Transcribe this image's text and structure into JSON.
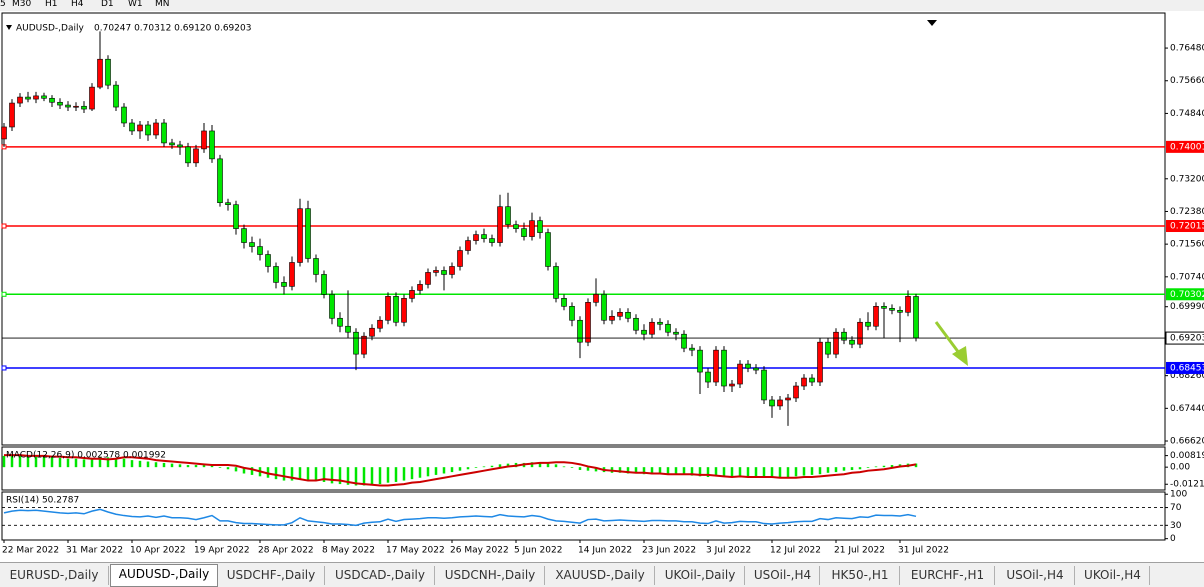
{
  "toolbar": {
    "timeframes": [
      "5",
      "M30",
      "H1",
      "H4",
      "D1",
      "W1",
      "MN"
    ]
  },
  "tabs": {
    "items": [
      "EURUSD-,Daily",
      "AUDUSD-,Daily",
      "USDCHF-,Daily",
      "USDCAD-,Daily",
      "USDCNH-,Daily",
      "XAUUSD-,Daily",
      "UKOil-,Daily",
      "USOil-,H4",
      "HK50-,H1",
      "EURCHF-,H1",
      "USOil-,H4",
      "UKOil-,H4"
    ],
    "active": 1
  },
  "chart_data": [
    {
      "type": "candlestick",
      "title": "AUDUSD-,Daily",
      "subtitle": "0.70247 0.70312 0.69120 0.69203",
      "up_color": "#ff0000",
      "down_color": "#00e600",
      "categories": [
        "22 Mar 2022",
        null,
        null,
        null,
        null,
        null,
        null,
        null,
        "31 Mar 2022",
        null,
        null,
        null,
        null,
        null,
        null,
        null,
        "10 Apr 2022",
        null,
        null,
        null,
        null,
        null,
        null,
        null,
        "19 Apr 2022",
        null,
        null,
        null,
        null,
        null,
        null,
        null,
        "28 Apr 2022",
        null,
        null,
        null,
        null,
        null,
        null,
        null,
        "8 May 2022",
        null,
        null,
        null,
        null,
        null,
        null,
        null,
        "17 May 2022",
        null,
        null,
        null,
        null,
        null,
        null,
        null,
        "26 May 2022",
        null,
        null,
        null,
        null,
        null,
        null,
        null,
        "5 Jun 2022",
        null,
        null,
        null,
        null,
        null,
        null,
        null,
        "14 Jun 2022",
        null,
        null,
        null,
        null,
        null,
        null,
        null,
        "23 Jun 2022",
        null,
        null,
        null,
        null,
        null,
        null,
        null,
        "3 Jul 2022",
        null,
        null,
        null,
        null,
        null,
        null,
        null,
        "12 Jul 2022",
        null,
        null,
        null,
        null,
        null,
        null,
        null,
        "21 Jul 2022",
        null,
        null,
        null,
        null,
        null,
        null,
        null,
        "31 Jul 2022",
        null,
        null
      ],
      "open": [
        0.742,
        0.745,
        0.751,
        0.7525,
        0.752,
        0.7528,
        0.7522,
        0.7512,
        0.7505,
        0.75,
        0.7502,
        0.7495,
        0.755,
        0.762,
        0.7555,
        0.75,
        0.746,
        0.744,
        0.7455,
        0.743,
        0.746,
        0.741,
        0.7405,
        0.74,
        0.736,
        0.7395,
        0.744,
        0.737,
        0.726,
        0.7255,
        0.7195,
        0.716,
        0.715,
        0.713,
        0.71,
        0.706,
        0.705,
        0.711,
        0.7245,
        0.712,
        0.708,
        0.703,
        0.697,
        0.695,
        0.6935,
        0.688,
        0.6925,
        0.6945,
        0.6965,
        0.7025,
        0.696,
        0.702,
        0.704,
        0.7055,
        0.7085,
        0.709,
        0.708,
        0.71,
        0.714,
        0.7165,
        0.718,
        0.717,
        0.716,
        0.725,
        0.7205,
        0.7195,
        0.7175,
        0.7215,
        0.7185,
        0.71,
        0.702,
        0.7,
        0.6965,
        0.691,
        0.701,
        0.703,
        0.6965,
        0.6975,
        0.6985,
        0.697,
        0.694,
        0.693,
        0.696,
        0.6955,
        0.6935,
        0.693,
        0.6895,
        0.689,
        0.6835,
        0.681,
        0.689,
        0.68,
        0.6805,
        0.6855,
        0.6845,
        0.684,
        0.6765,
        0.675,
        0.6765,
        0.677,
        0.68,
        0.682,
        0.681,
        0.691,
        0.688,
        0.6935,
        0.6915,
        0.6905,
        0.696,
        0.695,
        0.7,
        0.6995,
        0.699,
        0.6985,
        0.70247
      ],
      "high": [
        0.746,
        0.752,
        0.7535,
        0.7538,
        0.7538,
        0.7536,
        0.753,
        0.7522,
        0.7515,
        0.7512,
        0.7515,
        0.756,
        0.769,
        0.763,
        0.7565,
        0.751,
        0.747,
        0.7465,
        0.7465,
        0.747,
        0.747,
        0.742,
        0.7415,
        0.741,
        0.7405,
        0.746,
        0.7455,
        0.738,
        0.727,
        0.7265,
        0.7205,
        0.7175,
        0.717,
        0.714,
        0.711,
        0.7075,
        0.7125,
        0.727,
        0.7265,
        0.713,
        0.709,
        0.704,
        0.6985,
        0.704,
        0.6945,
        0.6935,
        0.6955,
        0.6975,
        0.7035,
        0.7035,
        0.703,
        0.705,
        0.7065,
        0.7095,
        0.71,
        0.71,
        0.711,
        0.715,
        0.7175,
        0.719,
        0.7195,
        0.718,
        0.728,
        0.7285,
        0.7215,
        0.721,
        0.7235,
        0.7225,
        0.7195,
        0.711,
        0.703,
        0.701,
        0.6975,
        0.702,
        0.707,
        0.704,
        0.699,
        0.6995,
        0.6995,
        0.698,
        0.6955,
        0.697,
        0.697,
        0.6965,
        0.6945,
        0.694,
        0.6905,
        0.69,
        0.6845,
        0.69,
        0.69,
        0.6815,
        0.6865,
        0.6865,
        0.6855,
        0.685,
        0.6775,
        0.6775,
        0.678,
        0.681,
        0.683,
        0.683,
        0.692,
        0.692,
        0.6945,
        0.6945,
        0.6925,
        0.697,
        0.6985,
        0.701,
        0.701,
        0.7005,
        0.7,
        0.704,
        0.70312
      ],
      "low": [
        0.74,
        0.744,
        0.75,
        0.7512,
        0.751,
        0.7515,
        0.75,
        0.7495,
        0.749,
        0.749,
        0.7485,
        0.749,
        0.7545,
        0.7545,
        0.749,
        0.745,
        0.743,
        0.742,
        0.7415,
        0.742,
        0.74,
        0.7395,
        0.738,
        0.735,
        0.735,
        0.7385,
        0.736,
        0.725,
        0.724,
        0.718,
        0.7145,
        0.7135,
        0.7115,
        0.7085,
        0.7045,
        0.703,
        0.704,
        0.71,
        0.711,
        0.706,
        0.702,
        0.6955,
        0.6935,
        0.692,
        0.684,
        0.687,
        0.6915,
        0.6935,
        0.6955,
        0.695,
        0.695,
        0.701,
        0.703,
        0.7045,
        0.7075,
        0.704,
        0.707,
        0.709,
        0.713,
        0.7155,
        0.716,
        0.715,
        0.715,
        0.7195,
        0.7185,
        0.7165,
        0.7165,
        0.717,
        0.709,
        0.701,
        0.699,
        0.695,
        0.687,
        0.69,
        0.7,
        0.6955,
        0.6955,
        0.6965,
        0.696,
        0.693,
        0.6915,
        0.692,
        0.694,
        0.6925,
        0.6915,
        0.6885,
        0.6875,
        0.678,
        0.6795,
        0.68,
        0.6785,
        0.6785,
        0.6795,
        0.6835,
        0.683,
        0.6755,
        0.672,
        0.674,
        0.67,
        0.676,
        0.679,
        0.68,
        0.68,
        0.687,
        0.687,
        0.6905,
        0.6895,
        0.6895,
        0.694,
        0.694,
        0.692,
        0.698,
        0.691,
        0.6975,
        0.6912
      ],
      "close": [
        0.745,
        0.751,
        0.7525,
        0.752,
        0.7528,
        0.7522,
        0.7512,
        0.7505,
        0.75,
        0.7502,
        0.7495,
        0.755,
        0.762,
        0.7555,
        0.75,
        0.746,
        0.744,
        0.7455,
        0.743,
        0.746,
        0.741,
        0.7405,
        0.74,
        0.736,
        0.7395,
        0.744,
        0.737,
        0.726,
        0.7255,
        0.7195,
        0.716,
        0.715,
        0.713,
        0.71,
        0.706,
        0.705,
        0.711,
        0.7245,
        0.712,
        0.708,
        0.703,
        0.697,
        0.695,
        0.6935,
        0.688,
        0.6925,
        0.6945,
        0.6965,
        0.7025,
        0.696,
        0.702,
        0.704,
        0.7055,
        0.7085,
        0.709,
        0.708,
        0.71,
        0.714,
        0.7165,
        0.718,
        0.717,
        0.716,
        0.725,
        0.7205,
        0.7195,
        0.7175,
        0.7215,
        0.7185,
        0.71,
        0.702,
        0.7,
        0.6965,
        0.691,
        0.701,
        0.703,
        0.6965,
        0.6975,
        0.6985,
        0.697,
        0.694,
        0.693,
        0.696,
        0.6955,
        0.6935,
        0.693,
        0.6895,
        0.689,
        0.6835,
        0.681,
        0.689,
        0.68,
        0.6805,
        0.6855,
        0.6845,
        0.684,
        0.6765,
        0.675,
        0.6765,
        0.677,
        0.68,
        0.682,
        0.681,
        0.691,
        0.688,
        0.6935,
        0.6915,
        0.6905,
        0.696,
        0.695,
        0.7,
        0.6995,
        0.699,
        0.6985,
        0.7025,
        0.69203
      ],
      "ylim": [
        0.6652,
        0.7736
      ],
      "yticks": [
        {
          "value": 0.7648,
          "label": "0.76480"
        },
        {
          "value": 0.7566,
          "label": "0.75660"
        },
        {
          "value": 0.7484,
          "label": "0.74840"
        },
        {
          "value": 0.732,
          "label": "0.73200"
        },
        {
          "value": 0.7238,
          "label": "0.72380"
        },
        {
          "value": 0.7156,
          "label": "0.71560"
        },
        {
          "value": 0.7074,
          "label": "0.70740"
        },
        {
          "value": 0.6999,
          "label": "0.69990"
        },
        {
          "value": 0.6826,
          "label": "0.68260"
        },
        {
          "value": 0.6744,
          "label": "0.67440"
        },
        {
          "value": 0.6662,
          "label": "0.66620"
        }
      ],
      "levels": [
        {
          "value": 0.74001,
          "color": "#ff0000"
        },
        {
          "value": 0.72015,
          "color": "#ff0000"
        },
        {
          "value": 0.70302,
          "color": "#00e600"
        },
        {
          "value": 0.68453,
          "color": "#0000ff"
        }
      ]
    },
    {
      "type": "macd",
      "title": "MACD(12,26,9) 0.002578 0.001992",
      "color": "#00e600",
      "signal_color": "#cc0000",
      "values": [
        0.008,
        0.008,
        0.008,
        0.0075,
        0.0075,
        0.007,
        0.007,
        0.0065,
        0.006,
        0.006,
        0.0055,
        0.006,
        0.007,
        0.007,
        0.0065,
        0.006,
        0.005,
        0.0045,
        0.004,
        0.0035,
        0.003,
        0.0025,
        0.002,
        0.0015,
        0.0015,
        0.0015,
        0.001,
        -0.0005,
        -0.0015,
        -0.003,
        -0.0045,
        -0.0055,
        -0.0065,
        -0.0075,
        -0.0085,
        -0.0095,
        -0.0095,
        -0.0085,
        -0.009,
        -0.0095,
        -0.0105,
        -0.0115,
        -0.012,
        -0.0125,
        -0.013,
        -0.013,
        -0.0125,
        -0.012,
        -0.011,
        -0.0105,
        -0.0095,
        -0.0085,
        -0.0075,
        -0.0065,
        -0.0055,
        -0.0045,
        -0.0035,
        -0.0025,
        -0.0015,
        -0.0005,
        0.0005,
        0.001,
        0.002,
        0.0025,
        0.003,
        0.003,
        0.0035,
        0.0035,
        0.003,
        0.002,
        0.0005,
        -0.0005,
        -0.002,
        -0.0025,
        -0.003,
        -0.0035,
        -0.004,
        -0.004,
        -0.0045,
        -0.0045,
        -0.005,
        -0.005,
        -0.005,
        -0.005,
        -0.0055,
        -0.0055,
        -0.006,
        -0.0065,
        -0.007,
        -0.0065,
        -0.007,
        -0.007,
        -0.007,
        -0.007,
        -0.0075,
        -0.0075,
        -0.0075,
        -0.007,
        -0.007,
        -0.0065,
        -0.006,
        -0.0055,
        -0.005,
        -0.004,
        -0.0035,
        -0.0025,
        -0.002,
        -0.0015,
        -0.0005,
        0.0005,
        0.001,
        0.0015,
        0.002,
        0.0025,
        0.002578
      ],
      "signal": [
        0.0085,
        0.0085,
        0.0085,
        0.008,
        0.008,
        0.008,
        0.0075,
        0.0075,
        0.007,
        0.007,
        0.0065,
        0.006,
        0.006,
        0.0055,
        0.006,
        0.007,
        0.007,
        0.0065,
        0.006,
        0.005,
        0.0045,
        0.004,
        0.0035,
        0.003,
        0.0025,
        0.002,
        0.0015,
        0.0015,
        0.0015,
        0.001,
        -0.0005,
        -0.0015,
        -0.003,
        -0.0045,
        -0.0055,
        -0.0065,
        -0.0075,
        -0.0085,
        -0.0095,
        -0.0095,
        -0.0085,
        -0.009,
        -0.0095,
        -0.0105,
        -0.0115,
        -0.012,
        -0.0125,
        -0.013,
        -0.013,
        -0.0125,
        -0.012,
        -0.011,
        -0.0105,
        -0.0095,
        -0.0085,
        -0.0075,
        -0.0065,
        -0.0055,
        -0.0045,
        -0.0035,
        -0.0025,
        -0.0015,
        -0.0005,
        0.0005,
        0.001,
        0.002,
        0.0025,
        0.003,
        0.003,
        0.0035,
        0.0035,
        0.003,
        0.002,
        0.0005,
        -0.0005,
        -0.002,
        -0.0025,
        -0.003,
        -0.0035,
        -0.004,
        -0.004,
        -0.0045,
        -0.0045,
        -0.005,
        -0.005,
        -0.005,
        -0.005,
        -0.0055,
        -0.0055,
        -0.006,
        -0.0065,
        -0.007,
        -0.0065,
        -0.007,
        -0.007,
        -0.007,
        -0.007,
        -0.0075,
        -0.0075,
        -0.0075,
        -0.007,
        -0.007,
        -0.0065,
        -0.006,
        -0.0055,
        -0.005,
        -0.004,
        -0.0035,
        -0.0025,
        -0.002,
        -0.0015,
        -0.0005,
        0.0005,
        0.001,
        0.001992
      ],
      "ylim": [
        -0.0162,
        0.0143
      ],
      "yticks": [
        0.008197,
        {
          "value": 0,
          "label": "0.00"
        },
        -0.01212
      ]
    },
    {
      "type": "line",
      "title": "RSI(14) 50.2787",
      "color": "#1e88e5",
      "values": [
        58,
        62,
        64,
        63,
        64,
        62,
        60,
        58,
        57,
        58,
        56,
        62,
        66,
        60,
        55,
        52,
        50,
        49,
        51,
        48,
        51,
        47,
        47,
        46,
        43,
        47,
        52,
        40,
        40,
        36,
        34,
        34,
        33,
        32,
        31,
        31,
        36,
        47,
        40,
        38,
        36,
        33,
        33,
        32,
        30,
        35,
        37,
        38,
        44,
        39,
        43,
        44,
        45,
        47,
        47,
        46,
        47,
        49,
        50,
        51,
        50,
        49,
        54,
        51,
        50,
        49,
        52,
        50,
        44,
        40,
        39,
        37,
        35,
        43,
        44,
        40,
        41,
        42,
        41,
        40,
        39,
        41,
        41,
        40,
        40,
        38,
        38,
        35,
        34,
        40,
        35,
        36,
        39,
        38,
        38,
        34,
        33,
        35,
        36,
        38,
        39,
        39,
        45,
        43,
        47,
        46,
        45,
        49,
        48,
        53,
        52,
        52,
        51,
        54,
        50.2787
      ],
      "ylim": [
        -3,
        105
      ],
      "yticks": [
        100,
        70,
        30,
        0
      ],
      "levels": [
        70,
        30
      ]
    }
  ]
}
